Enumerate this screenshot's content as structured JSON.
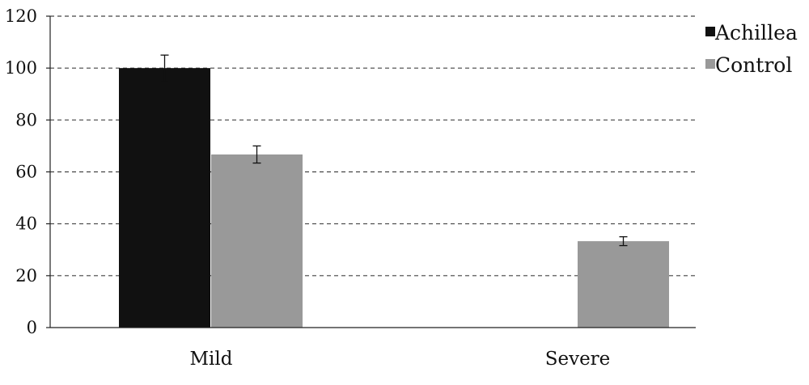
{
  "chart_data": {
    "type": "bar",
    "categories": [
      "Mild",
      "Severe"
    ],
    "series": [
      {
        "name": "Achillea",
        "color": "#111111",
        "values": [
          100,
          0
        ],
        "errors": [
          5,
          null
        ]
      },
      {
        "name": "Control",
        "color": "#999999",
        "values": [
          66.7,
          33.3
        ],
        "errors": [
          3.3,
          1.7
        ]
      }
    ],
    "ylim": [
      0,
      120
    ],
    "yticks": [
      0,
      20,
      40,
      60,
      80,
      100,
      120
    ],
    "grid": true,
    "legend_position": "top-right",
    "title": "",
    "xlabel": "",
    "ylabel": ""
  }
}
